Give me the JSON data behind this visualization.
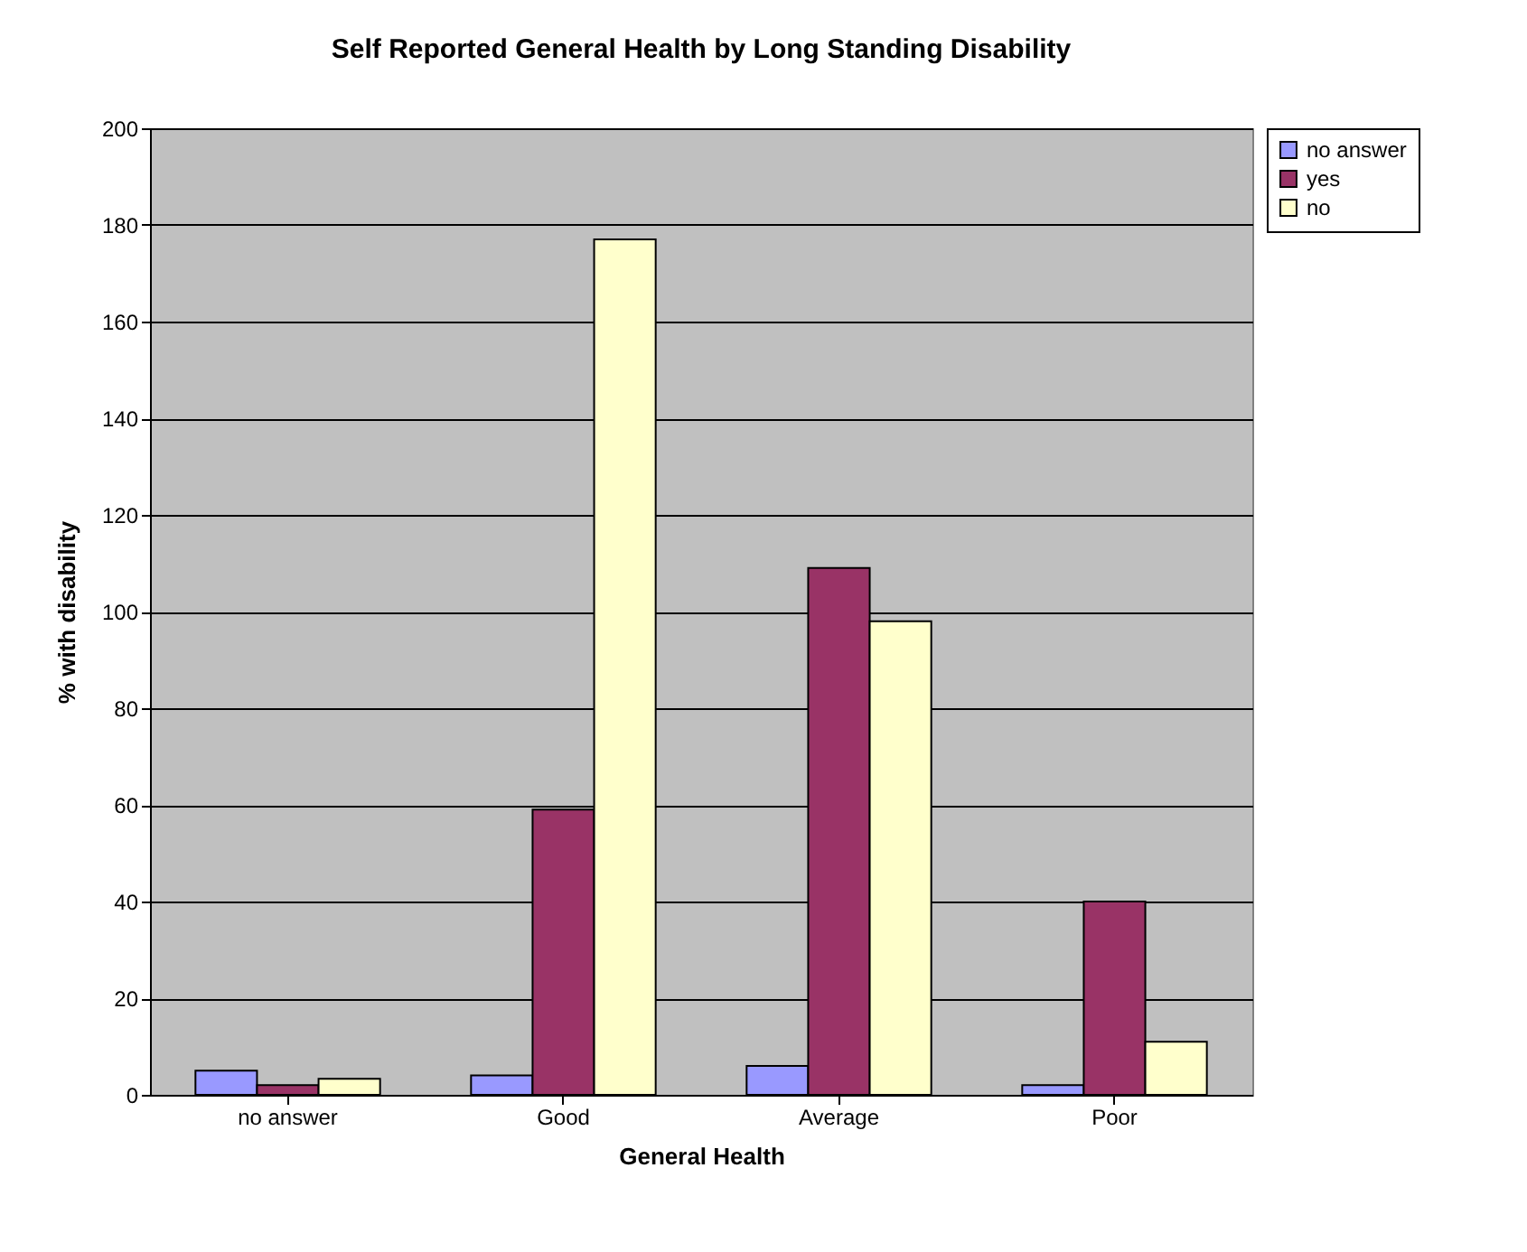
{
  "chart_data": {
    "type": "bar",
    "title": "Self Reported General Health by Long Standing Disability",
    "xlabel": "General Health",
    "ylabel": "% with disability",
    "categories": [
      "no answer",
      "Good",
      "Average",
      "Poor"
    ],
    "series": [
      {
        "name": "no answer",
        "color": "#9999ff",
        "values": [
          5,
          4,
          6,
          2
        ]
      },
      {
        "name": "yes",
        "color": "#993366",
        "values": [
          2,
          59,
          109,
          40
        ]
      },
      {
        "name": "no",
        "color": "#ffffcc",
        "values": [
          3.3,
          177,
          98,
          11
        ]
      }
    ],
    "ylim": [
      0,
      200
    ],
    "yticks": [
      0,
      20,
      40,
      60,
      80,
      100,
      120,
      140,
      160,
      180,
      200
    ],
    "grid": "y",
    "legend": "right"
  }
}
